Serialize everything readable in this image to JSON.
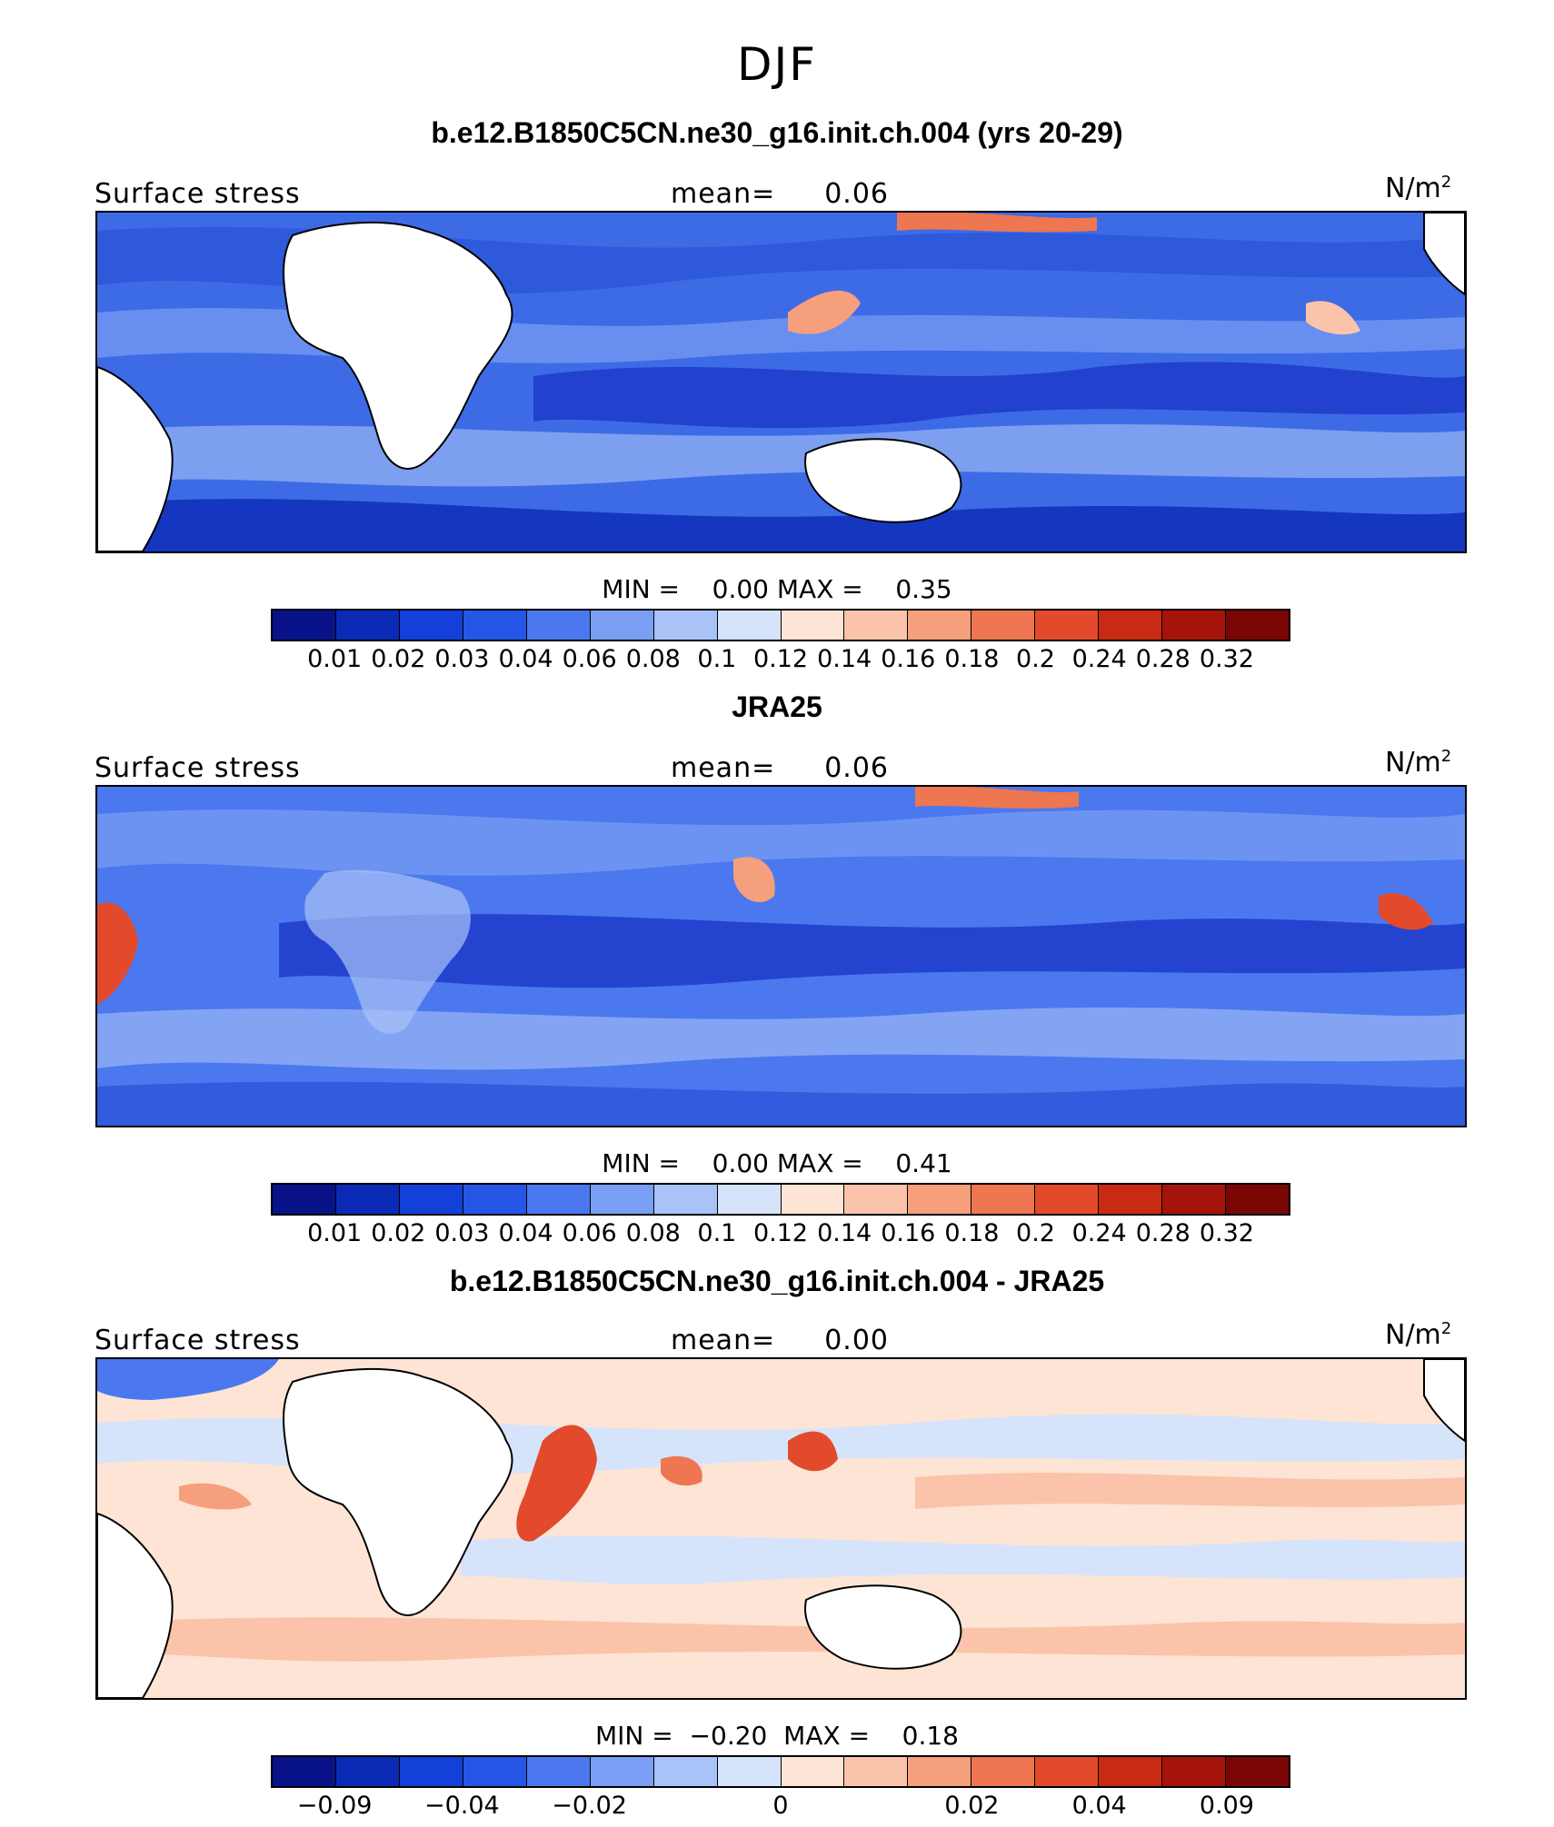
{
  "figure": {
    "season": "DJF"
  },
  "panels": [
    {
      "title": "b.e12.B1850C5CN.ne30_g16.init.ch.004 (yrs 20-29)",
      "left_label": "Surface stress",
      "mean_label": "mean=",
      "mean_value": "0.06",
      "units": "N/m",
      "units_sup": "2",
      "min_label": "MIN =",
      "min_value": "0.00",
      "max_label": "MAX =",
      "max_value": "0.35",
      "colorbar_ticks": [
        "0.01",
        "0.02",
        "0.03",
        "0.04",
        "0.06",
        "0.08",
        "0.1",
        "0.12",
        "0.14",
        "0.16",
        "0.18",
        "0.2",
        "0.24",
        "0.28",
        "0.32"
      ]
    },
    {
      "title": "JRA25",
      "left_label": "Surface stress",
      "mean_label": "mean=",
      "mean_value": "0.06",
      "units": "N/m",
      "units_sup": "2",
      "min_label": "MIN =",
      "min_value": "0.00",
      "max_label": "MAX =",
      "max_value": "0.41",
      "colorbar_ticks": [
        "0.01",
        "0.02",
        "0.03",
        "0.04",
        "0.06",
        "0.08",
        "0.1",
        "0.12",
        "0.14",
        "0.16",
        "0.18",
        "0.2",
        "0.24",
        "0.28",
        "0.32"
      ]
    },
    {
      "title": "b.e12.B1850C5CN.ne30_g16.init.ch.004 - JRA25",
      "left_label": "Surface stress",
      "mean_label": "mean=",
      "mean_value": "0.00",
      "units": "N/m",
      "units_sup": "2",
      "min_label": "MIN =",
      "min_value": "−0.20",
      "max_label": "MAX =",
      "max_value": "0.18",
      "colorbar_ticks": [
        "−0.09",
        "−0.04",
        "−0.02",
        "0",
        "0.02",
        "0.04",
        "0.09"
      ]
    }
  ],
  "colorbar_colors": [
    "#08138a",
    "#0b2ab5",
    "#1340d8",
    "#2656e6",
    "#4b78ee",
    "#7a9ef3",
    "#a9c2f7",
    "#d5e4fb",
    "#fde4d4",
    "#fbc4aa",
    "#f69f7c",
    "#ee7650",
    "#e24a2b",
    "#c82a14",
    "#a5140b",
    "#7a0606"
  ]
}
